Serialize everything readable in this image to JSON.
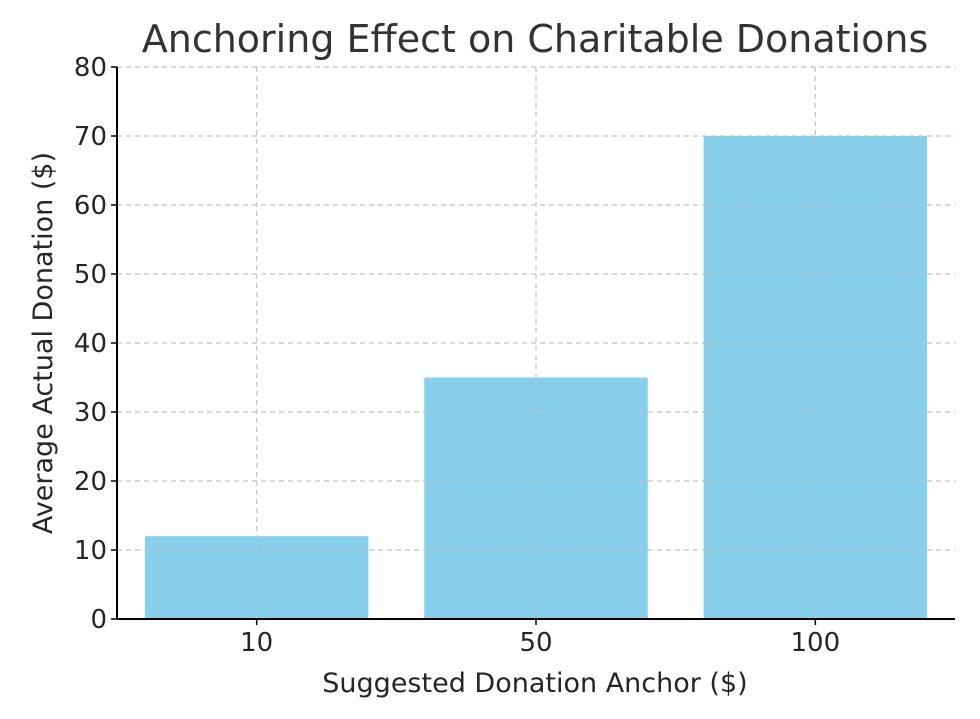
{
  "chart_data": {
    "type": "bar",
    "title": "Anchoring Effect on Charitable Donations",
    "xlabel": "Suggested Donation Anchor ($)",
    "ylabel": "Average Actual Donation ($)",
    "categories": [
      "10",
      "50",
      "100"
    ],
    "values": [
      12,
      35,
      70
    ],
    "ylim": [
      0,
      80
    ],
    "yticks": [
      0,
      10,
      20,
      30,
      40,
      50,
      60,
      70,
      80
    ],
    "grid": true,
    "colors": {
      "bar": "#87ceeb"
    }
  }
}
